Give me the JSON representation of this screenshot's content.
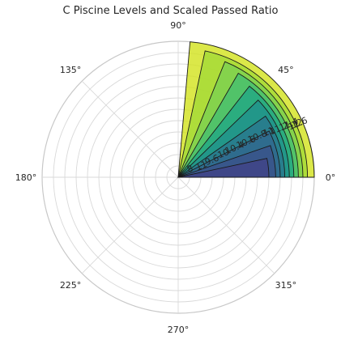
{
  "chart_data": {
    "type": "bar",
    "subtype": "polar-stacked-wedges",
    "title": "C Piscine Levels and Scaled Passed Ratio",
    "angle_tick_labels": [
      "0°",
      "45°",
      "90°",
      "135°",
      "180°",
      "225°",
      "270°",
      "315°"
    ],
    "radial_labels": [
      "8",
      "11",
      "9.6",
      "10",
      "10.4",
      "10.6",
      "10.8",
      "11",
      "11.2",
      "11.4",
      "11.6",
      "12"
    ],
    "radius_max": 12,
    "grid": true,
    "wedges": [
      {
        "level": "8",
        "radius": 8.0,
        "angle_deg": 12,
        "color": "#414487"
      },
      {
        "level": "11",
        "radius": 8.6,
        "angle_deg": 19,
        "color": "#3b528b"
      },
      {
        "level": "9.6",
        "radius": 9.0,
        "angle_deg": 27,
        "color": "#31688e"
      },
      {
        "level": "10",
        "radius": 9.4,
        "angle_deg": 35,
        "color": "#2a788e"
      },
      {
        "level": "10.4",
        "radius": 9.8,
        "angle_deg": 44,
        "color": "#21918c"
      },
      {
        "level": "10.6",
        "radius": 10.2,
        "angle_deg": 52,
        "color": "#22a884"
      },
      {
        "level": "10.8",
        "radius": 10.6,
        "angle_deg": 60,
        "color": "#44bf70"
      },
      {
        "level": "11",
        "radius": 11.0,
        "angle_deg": 68,
        "color": "#7ad151"
      },
      {
        "level": "11.4",
        "radius": 11.4,
        "angle_deg": 78,
        "color": "#a2da37"
      },
      {
        "level": "12",
        "radius": 12.0,
        "angle_deg": 85,
        "color": "#d2e21b"
      }
    ]
  }
}
